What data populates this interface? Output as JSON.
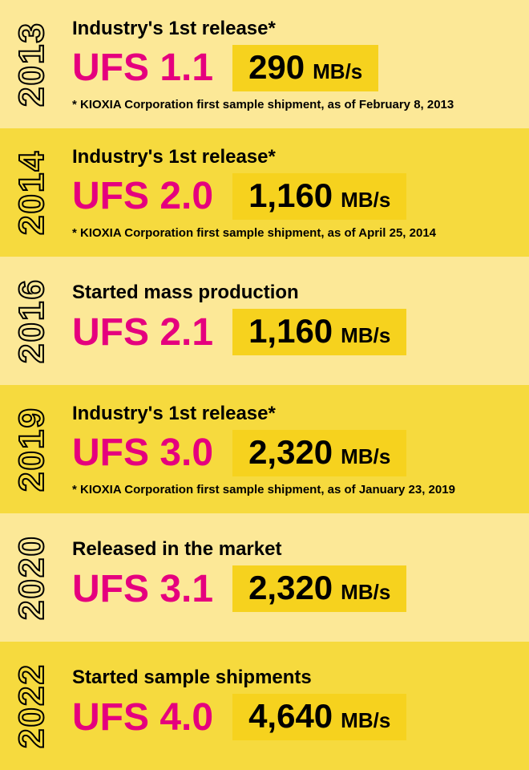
{
  "colors": {
    "row_bg_light": "#fce897",
    "row_bg_dark": "#f6da3e",
    "speed_box_bg": "#f6d21e",
    "version_color": "#e5007e",
    "text_color": "#000000"
  },
  "speed_unit": "MB/s",
  "rows": [
    {
      "year": "2013",
      "headline": "Industry's 1st release*",
      "version": "UFS 1.1",
      "speed": "290",
      "footnote": "* KIOXIA Corporation first sample shipment, as of February 8, 2013",
      "bg": "light"
    },
    {
      "year": "2014",
      "headline": "Industry's 1st release*",
      "version": "UFS 2.0",
      "speed": "1,160",
      "footnote": "* KIOXIA Corporation first sample shipment, as of April 25, 2014",
      "bg": "dark"
    },
    {
      "year": "2016",
      "headline": "Started mass production",
      "version": "UFS 2.1",
      "speed": "1,160",
      "footnote": "",
      "bg": "light"
    },
    {
      "year": "2019",
      "headline": "Industry's 1st release*",
      "version": "UFS 3.0",
      "speed": "2,320",
      "footnote": "* KIOXIA Corporation first sample shipment, as of January 23, 2019",
      "bg": "dark"
    },
    {
      "year": "2020",
      "headline": "Released in the market",
      "version": "UFS 3.1",
      "speed": "2,320",
      "footnote": "",
      "bg": "light"
    },
    {
      "year": "2022",
      "headline": "Started sample shipments",
      "version": "UFS 4.0",
      "speed": "4,640",
      "footnote": "",
      "bg": "dark"
    }
  ]
}
